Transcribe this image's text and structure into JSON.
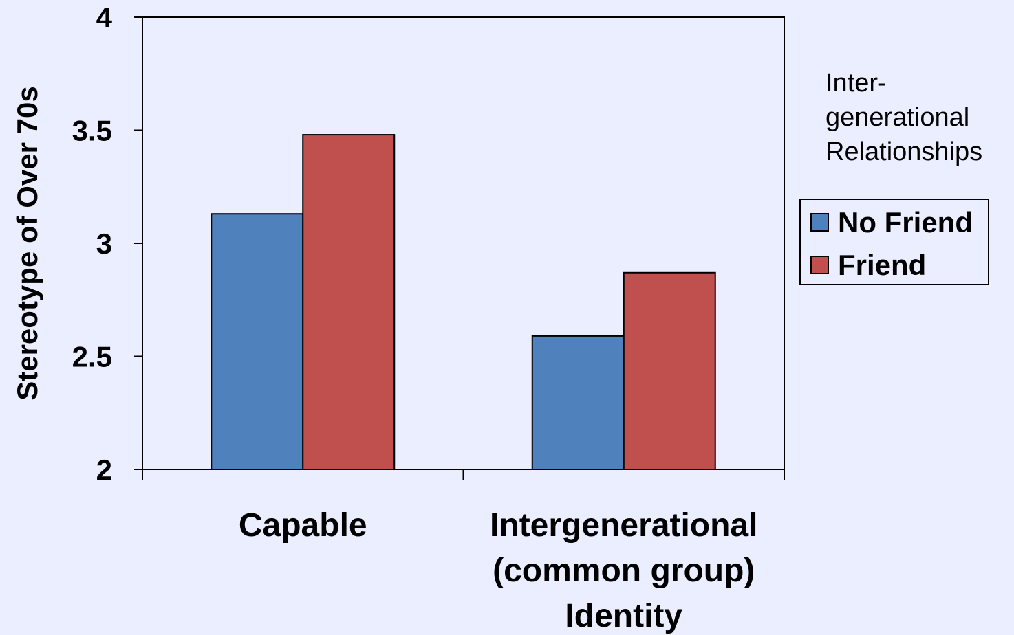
{
  "chart_data": {
    "type": "bar",
    "categories": [
      [
        "Capable"
      ],
      [
        "Intergenerational",
        "(common group)",
        "Identity"
      ]
    ],
    "series": [
      {
        "name": "No Friend",
        "color": "#4F81BD",
        "values": [
          3.13,
          2.59
        ]
      },
      {
        "name": "Friend",
        "color": "#C0504D",
        "values": [
          3.48,
          2.87
        ]
      }
    ],
    "ylabel": "Stereotype of Over 70s",
    "ylim": [
      2,
      4
    ],
    "yticks": [
      {
        "value": 2,
        "label": "2"
      },
      {
        "value": 2.5,
        "label": "2.5"
      },
      {
        "value": 3,
        "label": "3"
      },
      {
        "value": 3.5,
        "label": "3.5"
      },
      {
        "value": 4,
        "label": "4"
      }
    ],
    "legend": {
      "title": [
        "Inter-",
        "generational",
        "Relationships"
      ],
      "placement": "right"
    },
    "grid": false,
    "background": "#EAEEFF"
  }
}
